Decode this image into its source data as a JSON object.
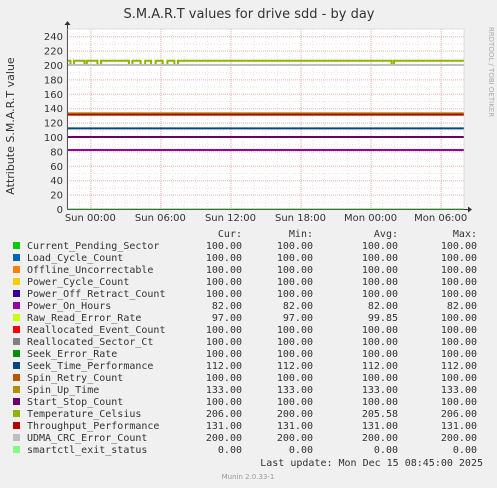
{
  "chart_data": {
    "type": "line",
    "title": "S.M.A.R.T values for drive sdd - by day",
    "ylabel": "Attribute S.M.A.R.T value",
    "xlabel": "",
    "ylim": [
      0,
      250
    ],
    "y_ticks": [
      0,
      20,
      40,
      60,
      80,
      100,
      120,
      140,
      160,
      180,
      200,
      220,
      240
    ],
    "x_tick_labels": [
      "Sun 00:00",
      "Sun 06:00",
      "Sun 12:00",
      "Sun 18:00",
      "Mon 00:00",
      "Mon 06:00"
    ],
    "x_range_hours": [
      -2,
      32
    ],
    "x_ticks_hours": [
      0,
      6,
      12,
      18,
      24,
      30
    ],
    "grid": true,
    "side_text": "RRDTOOL / TOBI OETIKER",
    "column_headers": [
      "Cur:",
      "Min:",
      "Avg:",
      "Max:"
    ],
    "series": [
      {
        "name": "Current_Pending_Sector",
        "color": "#00cc00",
        "cur": "100.00",
        "min": "100.00",
        "avg": "100.00",
        "max": "100.00",
        "value": 100
      },
      {
        "name": "Load_Cycle_Count",
        "color": "#0066b3",
        "cur": "100.00",
        "min": "100.00",
        "avg": "100.00",
        "max": "100.00",
        "value": 100
      },
      {
        "name": "Offline_Uncorrectable",
        "color": "#ff8000",
        "cur": "100.00",
        "min": "100.00",
        "avg": "100.00",
        "max": "100.00",
        "value": 100
      },
      {
        "name": "Power_Cycle_Count",
        "color": "#ffcc00",
        "cur": "100.00",
        "min": "100.00",
        "avg": "100.00",
        "max": "100.00",
        "value": 100
      },
      {
        "name": "Power_Off_Retract_Count",
        "color": "#330099",
        "cur": "100.00",
        "min": "100.00",
        "avg": "100.00",
        "max": "100.00",
        "value": 100
      },
      {
        "name": "Power_On_Hours",
        "color": "#990099",
        "cur": "82.00",
        "min": "82.00",
        "avg": "82.00",
        "max": "82.00",
        "value": 82
      },
      {
        "name": "Raw_Read_Error_Rate",
        "color": "#ccff00",
        "cur": "97.00",
        "min": "97.00",
        "avg": "99.85",
        "max": "100.00",
        "value": 100
      },
      {
        "name": "Reallocated_Event_Count",
        "color": "#ff0000",
        "cur": "100.00",
        "min": "100.00",
        "avg": "100.00",
        "max": "100.00",
        "value": 100
      },
      {
        "name": "Reallocated_Sector_Ct",
        "color": "#808080",
        "cur": "100.00",
        "min": "100.00",
        "avg": "100.00",
        "max": "100.00",
        "value": 100
      },
      {
        "name": "Seek_Error_Rate",
        "color": "#008f00",
        "cur": "100.00",
        "min": "100.00",
        "avg": "100.00",
        "max": "100.00",
        "value": 100
      },
      {
        "name": "Seek_Time_Performance",
        "color": "#00487d",
        "cur": "112.00",
        "min": "112.00",
        "avg": "112.00",
        "max": "112.00",
        "value": 112
      },
      {
        "name": "Spin_Retry_Count",
        "color": "#b35a00",
        "cur": "100.00",
        "min": "100.00",
        "avg": "100.00",
        "max": "100.00",
        "value": 100
      },
      {
        "name": "Spin_Up_Time",
        "color": "#b38f00",
        "cur": "133.00",
        "min": "133.00",
        "avg": "133.00",
        "max": "133.00",
        "value": 133
      },
      {
        "name": "Start_Stop_Count",
        "color": "#6b006b",
        "cur": "100.00",
        "min": "100.00",
        "avg": "100.00",
        "max": "100.00",
        "value": 100
      },
      {
        "name": "Temperature_Celsius",
        "color": "#8fb300",
        "cur": "206.00",
        "min": "200.00",
        "avg": "205.58",
        "max": "206.00",
        "value": 206
      },
      {
        "name": "Throughput_Performance",
        "color": "#b30000",
        "cur": "131.00",
        "min": "131.00",
        "avg": "131.00",
        "max": "131.00",
        "value": 131
      },
      {
        "name": "UDMA_CRC_Error_Count",
        "color": "#bebebe",
        "cur": "200.00",
        "min": "200.00",
        "avg": "200.00",
        "max": "200.00",
        "value": 200
      },
      {
        "name": "smartctl_exit_status",
        "color": "#80ff80",
        "cur": "0.00",
        "min": "0.00",
        "avg": "0.00",
        "max": "0.00",
        "value": 0
      }
    ],
    "last_update": "Last update:  Mon Dec 15 08:45:00 2025",
    "footer": "Munin 2.0.33-1"
  }
}
